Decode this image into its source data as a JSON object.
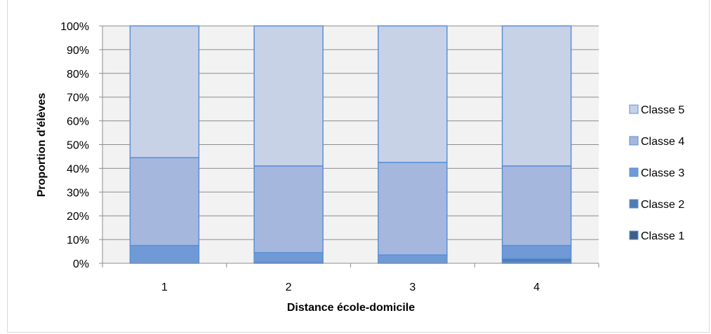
{
  "chart_data": {
    "type": "bar",
    "stacked": true,
    "percent": true,
    "title": "",
    "xlabel": "Distance école-domicile",
    "ylabel": "Proportion d'élèves",
    "categories": [
      "1",
      "2",
      "3",
      "4"
    ],
    "ylim": [
      0,
      100
    ],
    "y_ticks": [
      "0%",
      "10%",
      "20%",
      "30%",
      "40%",
      "50%",
      "60%",
      "70%",
      "80%",
      "90%",
      "100%"
    ],
    "grid": true,
    "legend_position": "right",
    "series": [
      {
        "name": "Classe 1",
        "color": "#3f5f8a",
        "values": [
          0,
          0,
          0,
          0.5
        ]
      },
      {
        "name": "Classe 2",
        "color": "#4f7cb5",
        "values": [
          0,
          0.5,
          0,
          1.5
        ]
      },
      {
        "name": "Classe 3",
        "color": "#6f9ad6",
        "values": [
          7.5,
          4,
          3.5,
          5.5
        ]
      },
      {
        "name": "Classe 4",
        "color": "#a6b7dd",
        "values": [
          37,
          36.5,
          39,
          33.5
        ]
      },
      {
        "name": "Classe 5",
        "color": "#c8d2e7",
        "values": [
          55.5,
          59,
          57.5,
          59
        ]
      }
    ]
  }
}
